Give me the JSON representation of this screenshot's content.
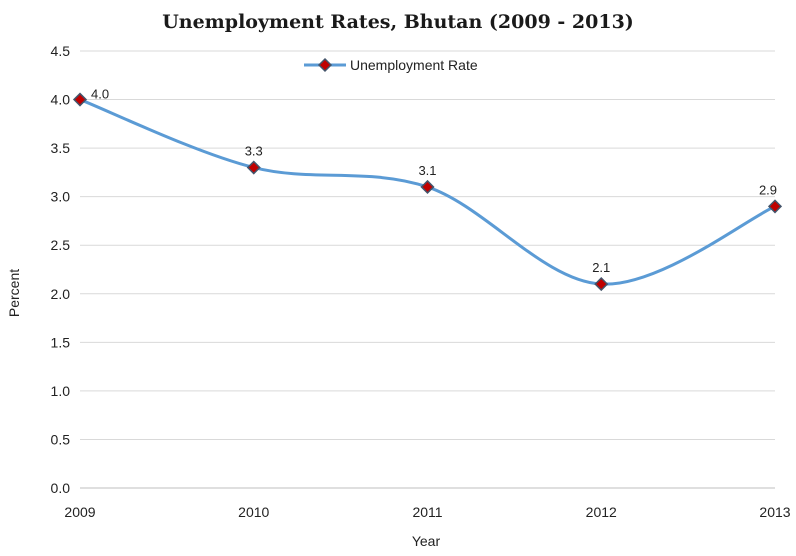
{
  "chart_data": {
    "type": "line",
    "title": "Unemployment Rates, Bhutan (2009 - 2013)",
    "xlabel": "Year",
    "ylabel": "Percent",
    "categories": [
      "2009",
      "2010",
      "2011",
      "2012",
      "2013"
    ],
    "series": [
      {
        "name": "Unemployment Rate",
        "values": [
          4.0,
          3.3,
          3.1,
          2.1,
          2.9
        ],
        "data_labels": [
          "4.0",
          "3.3",
          "3.1",
          "2.1",
          "2.9"
        ],
        "line_color": "#5b9bd5",
        "marker_fill": "#c00000",
        "marker_edge": "#44546a",
        "smooth": true
      }
    ],
    "ylim": [
      0,
      4.5
    ],
    "yticks": [
      "0.0",
      "0.5",
      "1.0",
      "1.5",
      "2.0",
      "2.5",
      "3.0",
      "3.5",
      "4.0",
      "4.5"
    ],
    "grid": true,
    "legend_position": "top-center"
  }
}
